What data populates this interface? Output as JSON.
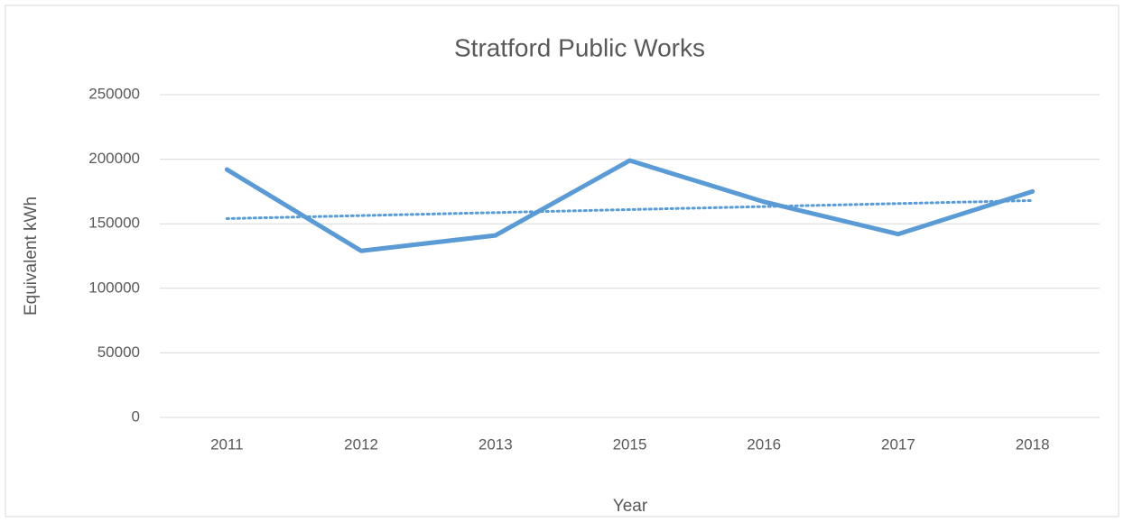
{
  "chart_data": {
    "type": "line",
    "title": "Stratford Public Works",
    "x_label": "Year",
    "y_label": "Equivalent kWh",
    "categories": [
      "2011",
      "2012",
      "2013",
      "2015",
      "2016",
      "2017",
      "2018"
    ],
    "series": [
      {
        "name": "Stratford Public Works",
        "color": "#5b9bd5",
        "values": [
          192000,
          129000,
          141000,
          199000,
          167000,
          142000,
          175000
        ]
      }
    ],
    "trendline": {
      "color": "#5b9bd5",
      "values": [
        154000,
        168000
      ]
    },
    "ylim": [
      0,
      250000
    ],
    "yticks": [
      0,
      50000,
      100000,
      150000,
      200000,
      250000
    ],
    "grid": true
  }
}
